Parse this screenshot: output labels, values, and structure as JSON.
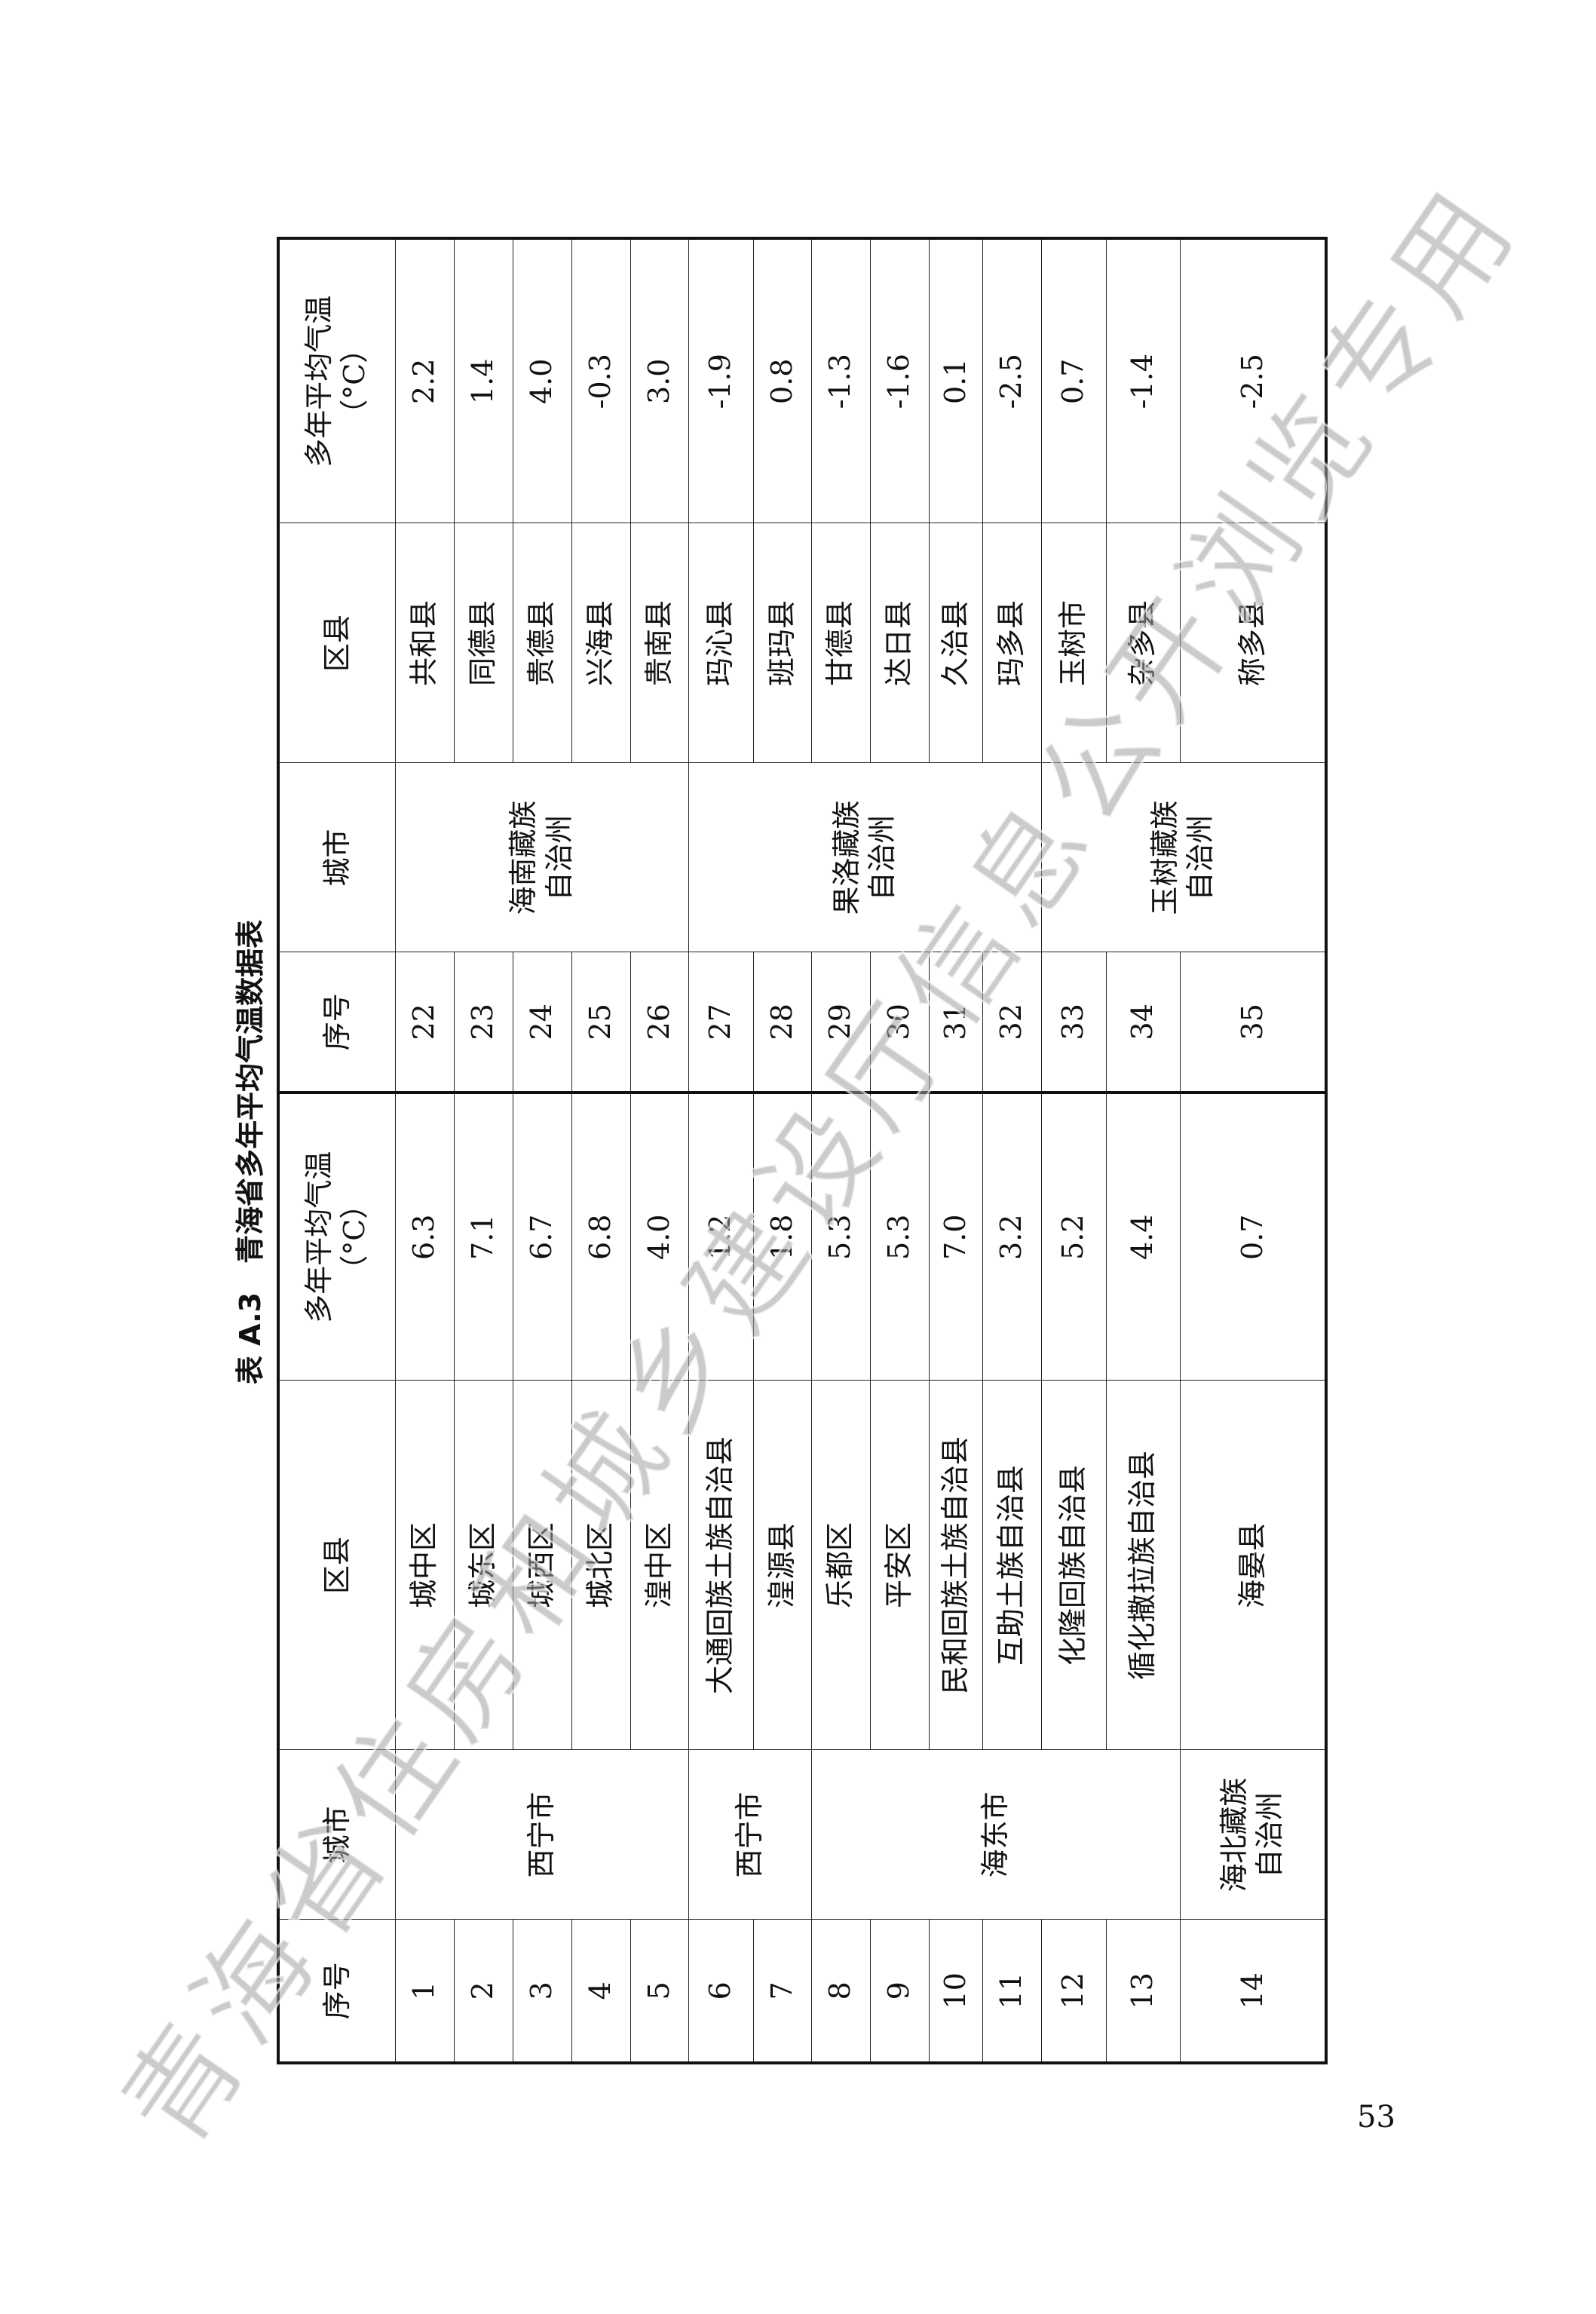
{
  "title": "表 A.3　青海省多年平均气温数据表",
  "headers": {
    "no": "序号",
    "city": "城市",
    "county": "区县",
    "temp": "多年平均气温",
    "temp_unit": "（°C）"
  },
  "left": {
    "cities": [
      {
        "name": "西宁市",
        "rows": 5
      },
      {
        "name": "西宁市",
        "rows": 2
      },
      {
        "name": "海东市",
        "rows": 6
      },
      {
        "name": "海北藏族自治州",
        "rows": 1
      }
    ],
    "rows": [
      {
        "no": "1",
        "county": "城中区",
        "temp": "6.3"
      },
      {
        "no": "2",
        "county": "城东区",
        "temp": "7.1"
      },
      {
        "no": "3",
        "county": "城西区",
        "temp": "6.7"
      },
      {
        "no": "4",
        "county": "城北区",
        "temp": "6.8"
      },
      {
        "no": "5",
        "county": "湟中区",
        "temp": "4.0"
      },
      {
        "no": "6",
        "county": "大通回族土族自治县",
        "temp": "1.2"
      },
      {
        "no": "7",
        "county": "湟源县",
        "temp": "1.8"
      },
      {
        "no": "8",
        "county": "乐都区",
        "temp": "5.3"
      },
      {
        "no": "9",
        "county": "平安区",
        "temp": "5.3"
      },
      {
        "no": "10",
        "county": "民和回族土族自治县",
        "temp": "7.0"
      },
      {
        "no": "11",
        "county": "互助土族自治县",
        "temp": "3.2"
      },
      {
        "no": "12",
        "county": "化隆回族自治县",
        "temp": "5.2"
      },
      {
        "no": "13",
        "county": "循化撒拉族自治县",
        "temp": "4.4"
      },
      {
        "no": "14",
        "county": "海晏县",
        "temp": "0.7"
      }
    ]
  },
  "right": {
    "cities": [
      {
        "name": "海南藏族自治州",
        "rows": 5
      },
      {
        "name": "果洛藏族自治州",
        "rows": 6
      },
      {
        "name": "玉树藏族自治州",
        "rows": 3
      }
    ],
    "rows": [
      {
        "no": "22",
        "county": "共和县",
        "temp": "2.2"
      },
      {
        "no": "23",
        "county": "同德县",
        "temp": "1.4"
      },
      {
        "no": "24",
        "county": "贵德县",
        "temp": "4.0"
      },
      {
        "no": "25",
        "county": "兴海县",
        "temp": "-0.3"
      },
      {
        "no": "26",
        "county": "贵南县",
        "temp": "3.0"
      },
      {
        "no": "27",
        "county": "玛沁县",
        "temp": "-1.9"
      },
      {
        "no": "28",
        "county": "班玛县",
        "temp": "0.8"
      },
      {
        "no": "29",
        "county": "甘德县",
        "temp": "-1.3"
      },
      {
        "no": "30",
        "county": "达日县",
        "temp": "-1.6"
      },
      {
        "no": "31",
        "county": "久治县",
        "temp": "0.1"
      },
      {
        "no": "32",
        "county": "玛多县",
        "temp": "-2.5"
      },
      {
        "no": "33",
        "county": "玉树市",
        "temp": "0.7"
      },
      {
        "no": "34",
        "county": "杂多县",
        "temp": "-1.4"
      },
      {
        "no": "35",
        "county": "称多县",
        "temp": "-2.5"
      }
    ]
  },
  "page_number": "53",
  "watermark": "青海省住房和城乡建设厅信息公开浏览专用"
}
